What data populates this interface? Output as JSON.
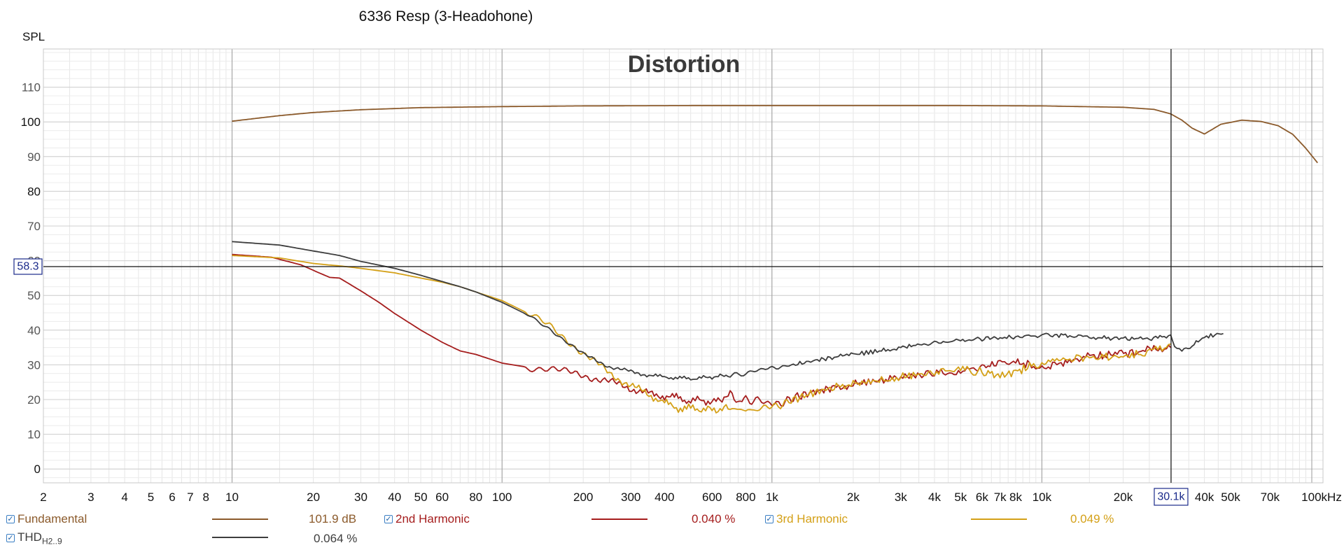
{
  "chart_data": {
    "type": "line",
    "title": "6336 Resp (3-Headohone)",
    "subtitle": "Distortion",
    "ylabel": "SPL",
    "x_scale": "log",
    "xlim": [
      2,
      110000
    ],
    "ylim": [
      -4,
      121
    ],
    "grid": true,
    "y_ticks": [
      0,
      10,
      20,
      30,
      40,
      50,
      60,
      70,
      80,
      90,
      100,
      110
    ],
    "x_ticks": [
      {
        "v": 2,
        "label": "2"
      },
      {
        "v": 3,
        "label": "3"
      },
      {
        "v": 4,
        "label": "4"
      },
      {
        "v": 5,
        "label": "5"
      },
      {
        "v": 6,
        "label": "6"
      },
      {
        "v": 7,
        "label": "7"
      },
      {
        "v": 8,
        "label": "8"
      },
      {
        "v": 10,
        "label": "10"
      },
      {
        "v": 20,
        "label": "20"
      },
      {
        "v": 30,
        "label": "30"
      },
      {
        "v": 40,
        "label": "40"
      },
      {
        "v": 50,
        "label": "50"
      },
      {
        "v": 60,
        "label": "60"
      },
      {
        "v": 80,
        "label": "80"
      },
      {
        "v": 100,
        "label": "100"
      },
      {
        "v": 200,
        "label": "200"
      },
      {
        "v": 300,
        "label": "300"
      },
      {
        "v": 400,
        "label": "400"
      },
      {
        "v": 600,
        "label": "600"
      },
      {
        "v": 800,
        "label": "800"
      },
      {
        "v": 1000,
        "label": "1k"
      },
      {
        "v": 2000,
        "label": "2k"
      },
      {
        "v": 3000,
        "label": "3k"
      },
      {
        "v": 4000,
        "label": "4k"
      },
      {
        "v": 5000,
        "label": "5k"
      },
      {
        "v": 6000,
        "label": "6k"
      },
      {
        "v": 7000,
        "label": "7k"
      },
      {
        "v": 8000,
        "label": "8k"
      },
      {
        "v": 10000,
        "label": "10k"
      },
      {
        "v": 20000,
        "label": "20k"
      },
      {
        "v": 40000,
        "label": "40k"
      },
      {
        "v": 50000,
        "label": "50k"
      },
      {
        "v": 70000,
        "label": "70k"
      },
      {
        "v": 100000,
        "label": "100kHz"
      }
    ],
    "cursor": {
      "x": 30100,
      "x_label": "30.1k",
      "y": 58.3,
      "y_label": "58.3"
    },
    "series": [
      {
        "name": "Fundamental",
        "color": "#8b5a2b",
        "value_label": "101.9 dB",
        "x": [
          10,
          15,
          20,
          30,
          50,
          100,
          200,
          500,
          1000,
          2000,
          5000,
          10000,
          20000,
          26000,
          30000,
          33000,
          36000,
          40000,
          46000,
          55000,
          65000,
          75000,
          85000,
          95000,
          105000
        ],
        "y": [
          100.2,
          101.8,
          102.7,
          103.5,
          104.1,
          104.4,
          104.6,
          104.7,
          104.7,
          104.7,
          104.7,
          104.6,
          104.2,
          103.6,
          102.3,
          100.5,
          98.2,
          96.5,
          99.3,
          100.5,
          100.1,
          98.9,
          96.4,
          92.4,
          88.2
        ]
      },
      {
        "name": "2nd Harmonic",
        "color": "#a51d1d",
        "value_label": "0.040 %",
        "x": [
          10,
          14,
          18,
          21,
          23,
          25,
          26,
          30,
          35,
          40,
          50,
          60,
          70,
          80,
          100,
          120,
          150,
          200,
          240,
          280,
          320,
          360,
          400,
          450,
          500,
          550,
          600,
          700,
          750,
          800,
          900,
          1000,
          1100,
          1200,
          1400,
          1700,
          2000,
          2500,
          3000,
          4000,
          5000,
          6000,
          7000,
          8000,
          9000,
          10000,
          12000,
          14000,
          18000,
          22000,
          26000,
          30000
        ],
        "y": [
          61.8,
          61.0,
          58.8,
          56.5,
          55.2,
          55.0,
          54.2,
          51.3,
          48.0,
          44.8,
          40.0,
          36.5,
          34.0,
          33.0,
          30.5,
          29.5,
          28.8,
          27.0,
          25.5,
          24.0,
          22.5,
          21.5,
          21.0,
          20.5,
          19.5,
          20.0,
          19.0,
          21.5,
          19.5,
          20.0,
          19.5,
          18.5,
          19.0,
          20.5,
          22.0,
          23.5,
          24.5,
          25.5,
          26.5,
          27.5,
          28.5,
          29.5,
          30.5,
          30.5,
          30.0,
          29.0,
          30.5,
          32.0,
          33.0,
          33.5,
          34.5,
          35.0
        ]
      },
      {
        "name": "3rd Harmonic",
        "color": "#d4a017",
        "value_label": "0.049 %",
        "x": [
          10,
          15,
          20,
          25,
          30,
          40,
          50,
          60,
          70,
          80,
          100,
          120,
          150,
          200,
          250,
          300,
          350,
          400,
          450,
          500,
          600,
          700,
          800,
          900,
          1000,
          1200,
          1500,
          2000,
          2500,
          3000,
          4000,
          5000,
          6000,
          7000,
          8000,
          9000,
          10000,
          12000,
          15000,
          20000,
          25000,
          30000
        ],
        "y": [
          61.5,
          60.8,
          59.2,
          58.5,
          57.8,
          56.5,
          55.0,
          53.8,
          52.5,
          51.0,
          48.5,
          45.5,
          41.0,
          33.5,
          27.5,
          24.0,
          21.5,
          19.0,
          17.5,
          17.5,
          17.0,
          17.5,
          17.0,
          17.0,
          17.5,
          20.0,
          22.5,
          24.5,
          25.5,
          26.5,
          28.0,
          28.5,
          28.0,
          27.0,
          28.0,
          29.5,
          30.5,
          31.5,
          32.0,
          32.5,
          34.0,
          36.0
        ]
      },
      {
        "name": "THD",
        "name_sub": "H2..9",
        "color": "#3d3d3d",
        "value_label": "0.064 %",
        "x": [
          10,
          15,
          20,
          25,
          30,
          40,
          50,
          60,
          70,
          80,
          100,
          120,
          150,
          200,
          250,
          300,
          350,
          400,
          500,
          600,
          700,
          800,
          1000,
          1200,
          1500,
          2000,
          2500,
          3000,
          4000,
          5000,
          6000,
          7000,
          8000,
          10000,
          12000,
          15000,
          20000,
          25000,
          30000,
          31000,
          33000,
          36000,
          40000,
          43000,
          47000
        ],
        "y": [
          65.5,
          64.5,
          62.8,
          61.5,
          59.8,
          57.8,
          55.8,
          54.0,
          52.5,
          51.0,
          48.0,
          45.0,
          40.5,
          33.0,
          29.5,
          28.0,
          27.0,
          26.5,
          26.0,
          26.5,
          27.0,
          27.5,
          29.0,
          30.0,
          31.5,
          33.0,
          34.0,
          35.0,
          36.5,
          37.0,
          37.5,
          38.0,
          38.0,
          38.5,
          38.5,
          38.0,
          37.5,
          37.5,
          38.5,
          35.0,
          34.5,
          35.5,
          38.0,
          38.5,
          39.0
        ]
      }
    ]
  }
}
